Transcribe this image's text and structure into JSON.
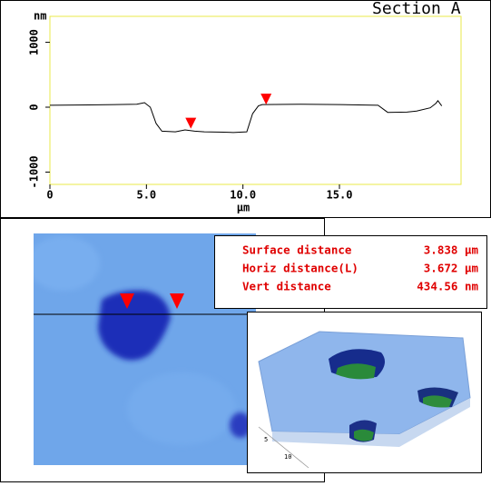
{
  "chart_data": {
    "type": "line",
    "title": "Section A",
    "y_label": "nm",
    "x_label": "μm",
    "series": [
      {
        "color": "#000000",
        "x": [
          0,
          2,
          4.5,
          4.9,
          5.2,
          5.5,
          5.8,
          6.5,
          7.0,
          7.5,
          8.0,
          9.0,
          9.5,
          10.2,
          10.5,
          10.8,
          11.0,
          13.0,
          15.0,
          17.0,
          17.5,
          18.5,
          19.0,
          19.7,
          20.0,
          20.1,
          20.3
        ],
        "values": [
          30,
          35,
          45,
          70,
          0,
          -250,
          -370,
          -380,
          -350,
          -370,
          -380,
          -385,
          -390,
          -380,
          -100,
          20,
          40,
          45,
          40,
          30,
          -80,
          -75,
          -60,
          -10,
          60,
          100,
          20
        ]
      }
    ],
    "cursor_x": [
      7.3,
      11.2
    ],
    "cursor_y": [
      -330,
      40
    ],
    "cursor_color": "#ff0000",
    "xlim": [
      0,
      21.3
    ],
    "ylim": [
      -1190,
      1400
    ],
    "xticks": [
      0,
      {
        "value": 5,
        "label": "5.0"
      },
      {
        "value": 10,
        "label": "10.0"
      },
      {
        "value": 15,
        "label": "15.0"
      }
    ],
    "yticks": [
      -1000,
      0,
      1000
    ],
    "plot_border": "#e8e84a"
  },
  "measurements": [
    {
      "label": "Surface distance",
      "value": "3.838 μm"
    },
    {
      "label": "Horiz distance(L)",
      "value": "3.672 μm"
    },
    {
      "label": "Vert distance",
      "value": "434.56 nm"
    }
  ],
  "inset_3d": {
    "axis_labels": [
      "5",
      "10"
    ]
  }
}
